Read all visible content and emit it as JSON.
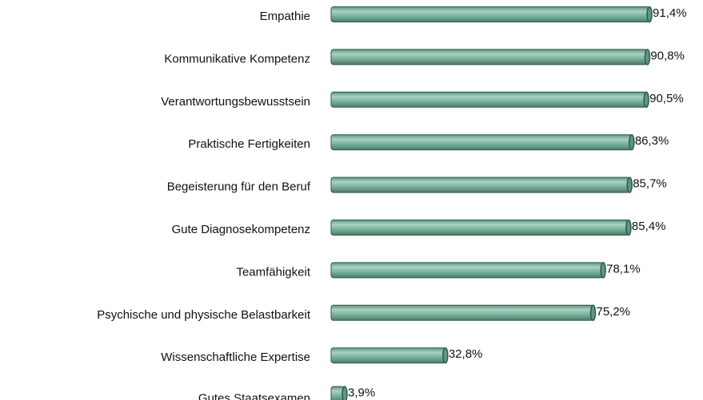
{
  "chart_data": {
    "type": "barh",
    "categories": [
      "Empathie",
      "Kommunikative Kompetenz",
      "Verantwortungsbewusstsein",
      "Praktische Fertigkeiten",
      "Begeisterung für den Beruf",
      "Gute Diagnosekompetenz",
      "Teamfähigkeit",
      "Psychische und physische Belastbarkeit",
      "Wissenschaftliche Expertise",
      "Gutes Staatsexamen"
    ],
    "values": [
      91.4,
      90.8,
      90.5,
      86.3,
      85.7,
      85.4,
      78.1,
      75.2,
      32.8,
      3.9
    ],
    "value_labels": [
      "91,4%",
      "90,8%",
      "90,5%",
      "86,3%",
      "85,7%",
      "85,4%",
      "78,1%",
      "75,2%",
      "32,8%",
      "3,9%"
    ],
    "color": "#7db39d"
  }
}
